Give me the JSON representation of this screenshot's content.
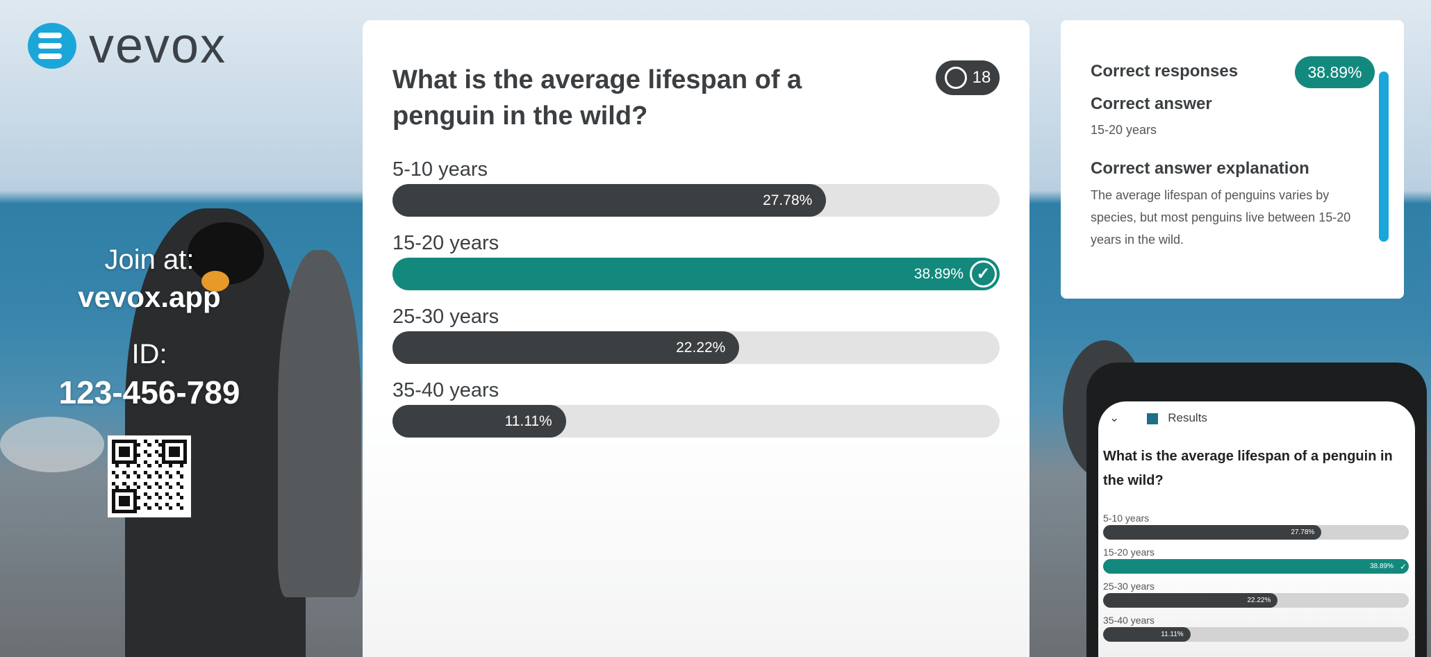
{
  "brand": {
    "name": "vevox",
    "logo_color": "#1aa6d8"
  },
  "join": {
    "label": "Join at:",
    "url": "vevox.app",
    "id_label": "ID:",
    "id": "123-456-789"
  },
  "question": {
    "text": "What is the average lifespan of a penguin in the wild?",
    "participants": "18"
  },
  "options": [
    {
      "label": "5-10 years",
      "percent": 27.78,
      "percent_text": "27.78%",
      "correct": false
    },
    {
      "label": "15-20 years",
      "percent": 38.89,
      "percent_text": "38.89%",
      "correct": true
    },
    {
      "label": "25-30 years",
      "percent": 22.22,
      "percent_text": "22.22%",
      "correct": false
    },
    {
      "label": "35-40 years",
      "percent": 11.11,
      "percent_text": "11.11%",
      "correct": false
    }
  ],
  "max_percent": 38.89,
  "side": {
    "correct_responses_label": "Correct responses",
    "correct_responses_value": "38.89%",
    "correct_answer_label": "Correct answer",
    "correct_answer": "15-20 years",
    "explanation_label": "Correct answer explanation",
    "explanation": "The average lifespan of penguins varies by species, but most penguins live between 15-20 years in the wild."
  },
  "phone": {
    "header": "Results"
  },
  "colors": {
    "accent": "#13897d",
    "bar": "#3b3f42",
    "track": "#e3e3e3"
  }
}
